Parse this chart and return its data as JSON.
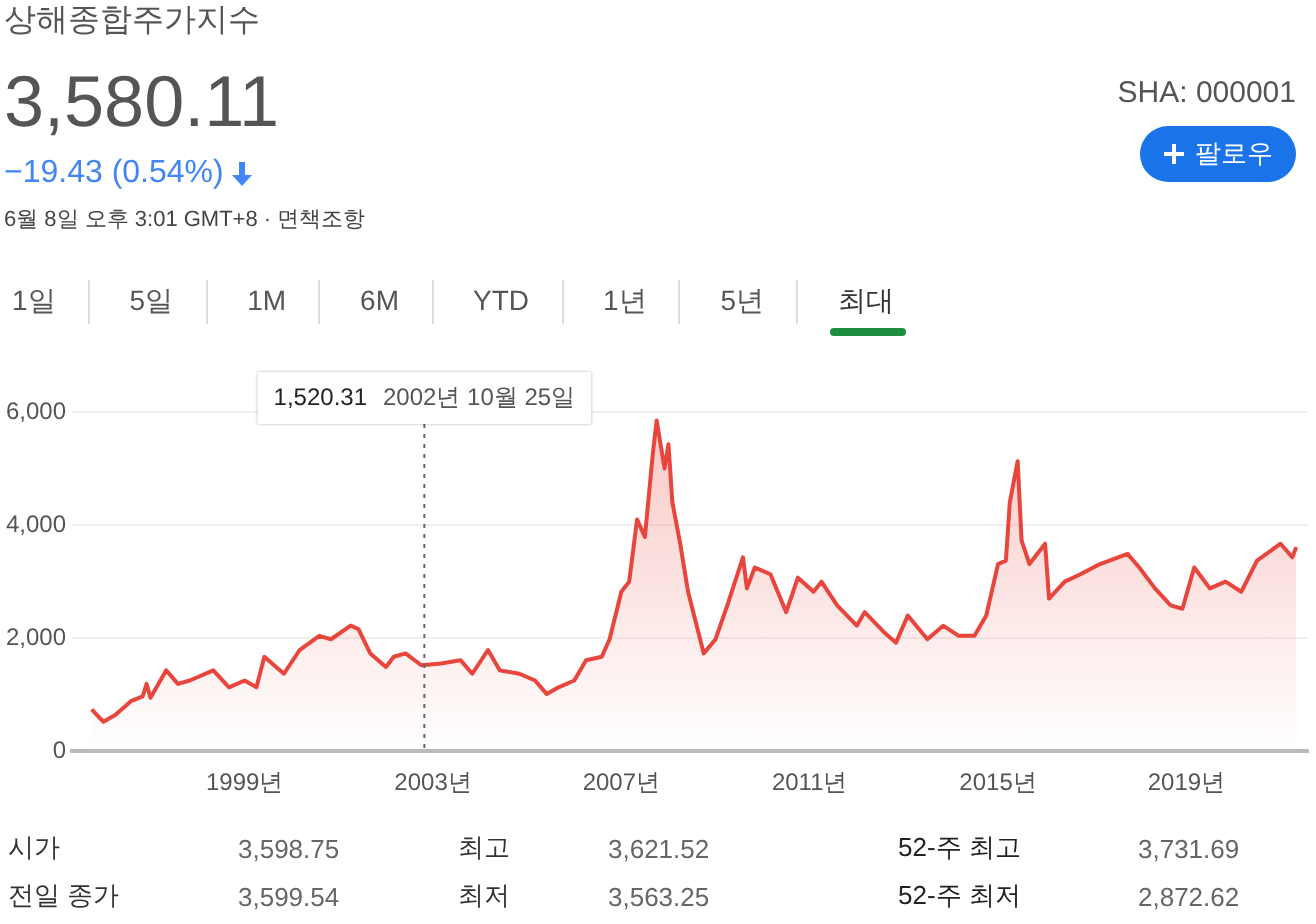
{
  "chart_data": {
    "type": "area",
    "title": "상해종합주가지수",
    "annotations": [
      "3,580.11",
      "−19.43 (0.54%)",
      "6월 8일 오후 3:01 GMT+8 · 면책조항",
      "SHA: 000001",
      "팔로우",
      "1일",
      "5일",
      "1M",
      "6M",
      "YTD",
      "1년",
      "5년",
      "최대",
      "시가",
      "3,598.75",
      "최고",
      "3,621.52",
      "52-주 최고",
      "3,731.69",
      "전일 종가",
      "3,599.54",
      "최저",
      "3,563.25",
      "52-주 최저",
      "2,872.62",
      "1,520.31"
    ],
    "ref_lines": [
      {
        "axis": "x",
        "value": "2002-10-25",
        "label": "2002년 10월 25일",
        "line_style": "dotted",
        "color": "#666666"
      }
    ],
    "series": [
      {
        "color": "#e8453c",
        "x": [
          "1995-10",
          "1996-01",
          "1996-04",
          "1996-08",
          "1996-11",
          "1996-12",
          "1997-01",
          "1997-05",
          "1997-08",
          "1997-11",
          "1998-05",
          "1998-09",
          "1999-01",
          "1999-04",
          "1999-06",
          "1999-11",
          "2000-03",
          "2000-08",
          "2000-11",
          "2001-04",
          "2001-06",
          "2001-09",
          "2002-01",
          "2002-03",
          "2002-06",
          "2002-10",
          "2003-03",
          "2003-08",
          "2003-11",
          "2004-03",
          "2004-06",
          "2004-11",
          "2005-03",
          "2005-06",
          "2005-09",
          "2006-01",
          "2006-04",
          "2006-08",
          "2006-10",
          "2007-01",
          "2007-03",
          "2007-05",
          "2007-07",
          "2007-09",
          "2007-10",
          "2007-12",
          "2008-01",
          "2008-02",
          "2008-04",
          "2008-06",
          "2008-10",
          "2009-01",
          "2009-04",
          "2009-08",
          "2009-09",
          "2009-11",
          "2010-03",
          "2010-07",
          "2010-10",
          "2011-02",
          "2011-04",
          "2011-08",
          "2012-01",
          "2012-03",
          "2012-08",
          "2012-11",
          "2013-02",
          "2013-07",
          "2013-11",
          "2014-03",
          "2014-07",
          "2014-10",
          "2015-01",
          "2015-03",
          "2015-04",
          "2015-06",
          "2015-07",
          "2015-09",
          "2016-01",
          "2016-02",
          "2016-06",
          "2016-10",
          "2017-03",
          "2017-10",
          "2018-01",
          "2018-05",
          "2018-09",
          "2018-12",
          "2019-03",
          "2019-07",
          "2019-11",
          "2020-03",
          "2020-07",
          "2021-01",
          "2021-04",
          "2021-05"
        ],
        "values": [
          740,
          520,
          640,
          885,
          970,
          1190,
          945,
          1430,
          1190,
          1250,
          1430,
          1130,
          1250,
          1130,
          1670,
          1370,
          1790,
          2040,
          1980,
          2220,
          2160,
          1730,
          1490,
          1670,
          1730,
          1520.31,
          1550,
          1610,
          1370,
          1790,
          1430,
          1370,
          1250,
          1010,
          1130,
          1250,
          1610,
          1670,
          1980,
          2820,
          3000,
          4100,
          3790,
          5250,
          5850,
          5000,
          5430,
          4400,
          3670,
          2820,
          1730,
          1980,
          2580,
          3430,
          2880,
          3250,
          3130,
          2460,
          3070,
          2820,
          3000,
          2580,
          2220,
          2460,
          2100,
          1920,
          2400,
          1980,
          2220,
          2040,
          2040,
          2400,
          3310,
          3370,
          4400,
          5130,
          3730,
          3310,
          3670,
          2700,
          3000,
          3130,
          3310,
          3490,
          3250,
          2880,
          2580,
          2520,
          3250,
          2880,
          3000,
          2820,
          3370,
          3670,
          3430,
          3610
        ]
      }
    ],
    "xlim": [
      "1995-05",
      "2021-08"
    ],
    "xticks": [
      {
        "value": "1999-01",
        "label": "1999년"
      },
      {
        "value": "2003-01",
        "label": "2003년"
      },
      {
        "value": "2007-01",
        "label": "2007년"
      },
      {
        "value": "2011-01",
        "label": "2011년"
      },
      {
        "value": "2015-01",
        "label": "2015년"
      },
      {
        "value": "2019-01",
        "label": "2019년"
      }
    ],
    "ylim": [
      0,
      6000
    ],
    "yticks": [
      {
        "value": 0,
        "label": "0"
      },
      {
        "value": 2000,
        "label": "2,000"
      },
      {
        "value": 4000,
        "label": "4,000"
      },
      {
        "value": 6000,
        "label": "6,000"
      }
    ],
    "grid": "y",
    "marker": "none",
    "line_style": "solid",
    "legend": false
  }
}
